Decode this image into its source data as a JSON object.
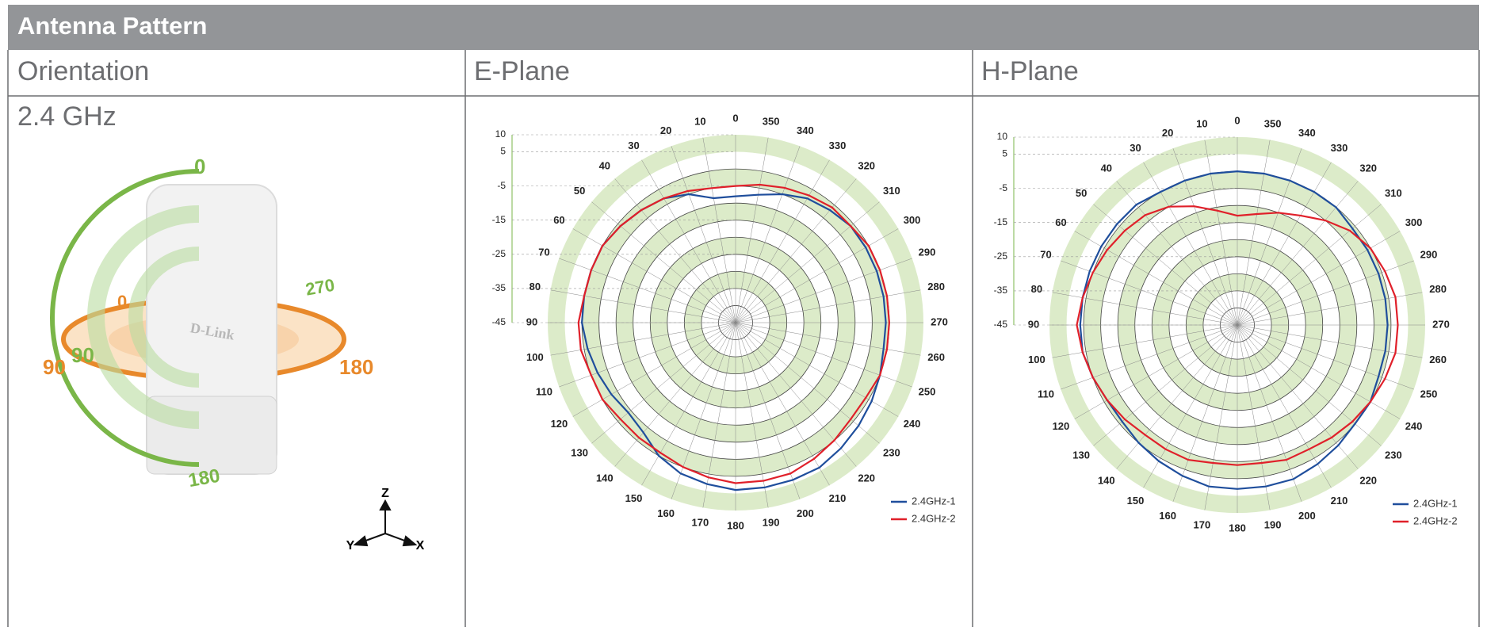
{
  "header": {
    "title": "Antenna Pattern"
  },
  "columns": [
    "Orientation",
    "E-Plane",
    "H-Plane"
  ],
  "row_label": "2.4 GHz",
  "orientation": {
    "labels": [
      0,
      270,
      0,
      90,
      90,
      180,
      180
    ],
    "axes": [
      "Z",
      "Y",
      "X"
    ]
  },
  "chart_data": [
    {
      "type": "polar",
      "x": [
        0,
        10,
        20,
        30,
        40,
        50,
        60,
        70,
        80,
        90,
        100,
        110,
        120,
        130,
        140,
        150,
        160,
        170,
        180,
        190,
        200,
        210,
        220,
        230,
        240,
        250,
        260,
        270,
        280,
        290,
        300,
        310,
        320,
        330,
        340,
        350
      ],
      "rlim": [
        -45,
        10
      ],
      "rticks": [
        10,
        5,
        -5,
        -15,
        -25,
        -35,
        -45
      ],
      "series": [
        {
          "name": "2.4GHz-1",
          "color": "#1f4e9c",
          "values": [
            -8,
            -8,
            -5,
            -3,
            -2,
            -1,
            0,
            0,
            0,
            0,
            -1,
            -2,
            -3,
            -4,
            -3,
            0,
            2,
            3,
            4,
            4,
            4,
            4,
            3,
            2,
            1,
            0,
            -1,
            -1,
            -1,
            -1,
            -1,
            -1,
            -2,
            -3,
            -5,
            -7
          ]
        },
        {
          "name": "2.4GHz-2",
          "color": "#e0202a",
          "values": [
            -5,
            -5,
            -4,
            -3,
            -2,
            -1,
            0,
            0,
            0,
            1,
            1,
            0,
            0,
            -1,
            -1,
            -1,
            0,
            1,
            2,
            2,
            2,
            1,
            0,
            -1,
            -1,
            0,
            0,
            0,
            0,
            0,
            0,
            -1,
            -1,
            -2,
            -3,
            -4
          ]
        }
      ]
    },
    {
      "type": "polar",
      "x": [
        0,
        10,
        20,
        30,
        40,
        50,
        60,
        70,
        80,
        90,
        100,
        110,
        120,
        130,
        140,
        150,
        160,
        170,
        180,
        190,
        200,
        210,
        220,
        230,
        240,
        250,
        260,
        270,
        280,
        290,
        300,
        310,
        320,
        330,
        340,
        350
      ],
      "rlim": [
        -45,
        10
      ],
      "rticks": [
        10,
        5,
        -5,
        -15,
        -25,
        -35,
        -45
      ],
      "series": [
        {
          "name": "2.4GHz-1",
          "color": "#1f4e9c",
          "values": [
            0,
            0,
            0,
            0,
            1,
            1,
            1,
            1,
            1,
            1,
            1,
            0,
            -1,
            -1,
            0,
            1,
            2,
            3,
            3,
            3,
            3,
            2,
            1,
            0,
            0,
            -1,
            -1,
            -1,
            -1,
            -1,
            -1,
            -1,
            0,
            0,
            0,
            0
          ]
        },
        {
          "name": "2.4GHz-2",
          "color": "#e0202a",
          "values": [
            -13,
            -11,
            -8,
            -5,
            -3,
            -2,
            -1,
            0,
            1,
            2,
            1,
            0,
            -1,
            -2,
            -3,
            -3,
            -3,
            -4,
            -4,
            -4,
            -3,
            -3,
            -2,
            -1,
            0,
            1,
            2,
            2,
            2,
            1,
            0,
            -2,
            -5,
            -8,
            -10,
            -12
          ]
        }
      ]
    }
  ]
}
